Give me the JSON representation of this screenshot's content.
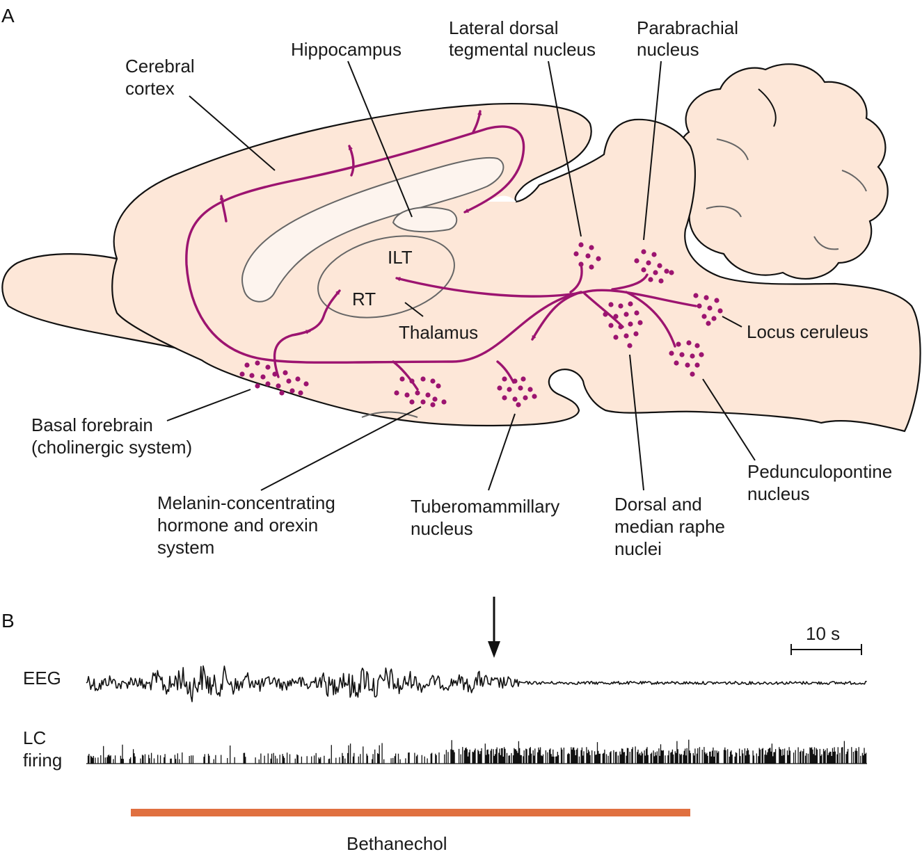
{
  "panels": {
    "a": "A",
    "b": "B"
  },
  "labels": {
    "hippocampus": "Hippocampus",
    "cerebral_cortex": [
      "Cerebral",
      "cortex"
    ],
    "ldt": [
      "Lateral dorsal",
      "tegmental nucleus"
    ],
    "parabrachial": [
      "Parabrachial",
      "nucleus"
    ],
    "ilt": "ILT",
    "rt": "RT",
    "thalamus": "Thalamus",
    "locus_ceruleus": "Locus ceruleus",
    "basal_forebrain": [
      "Basal forebrain",
      "(cholinergic system)"
    ],
    "mch_orexin": [
      "Melanin-concentrating",
      "hormone and orexin",
      "system"
    ],
    "tuberomammillary": [
      "Tuberomammillary",
      "nucleus"
    ],
    "raphe": [
      "Dorsal and",
      "median raphe",
      "nuclei"
    ],
    "pedunculopontine": [
      "Pedunculopontine",
      "nucleus"
    ]
  },
  "recording": {
    "eeg_label": "EEG",
    "lc_label": [
      "LC",
      "firing"
    ],
    "scale_bar": "10 s",
    "drug_label": "Bethanechol",
    "drug_color": "#e07040",
    "pathway_color": "#9c1470"
  }
}
